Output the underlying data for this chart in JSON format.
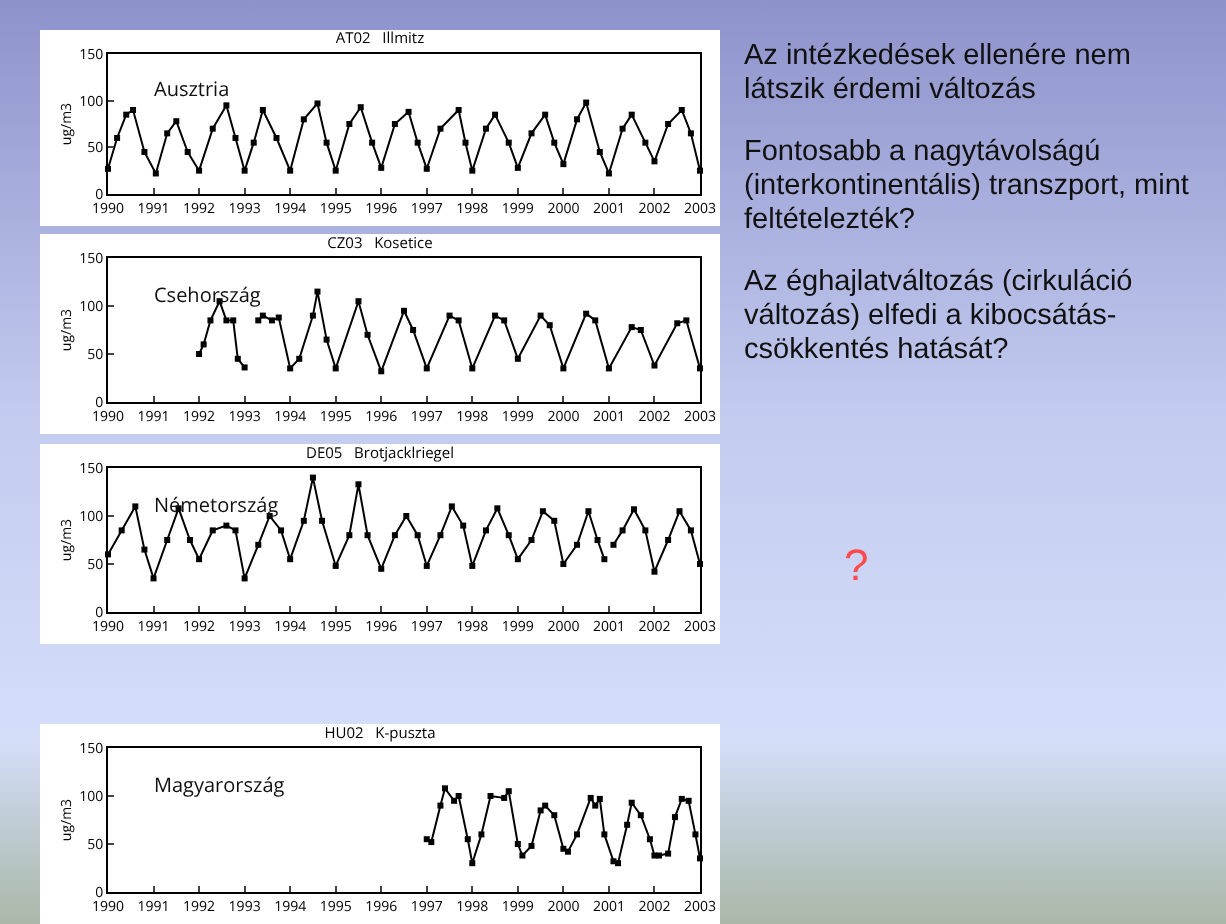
{
  "chart_data": [
    {
      "type": "line",
      "title": "AT02   Illmitz",
      "ylabel": "ug/m3",
      "annotations": [
        "Ausztria"
      ],
      "marker": "square",
      "grid": false,
      "xlim": [
        1990,
        2003
      ],
      "xticks": [
        1990,
        1991,
        1992,
        1993,
        1994,
        1995,
        1996,
        1997,
        1998,
        1999,
        2000,
        2001,
        2002,
        2003
      ],
      "ylim": [
        0,
        150
      ],
      "yticks": [
        0,
        50,
        100,
        150
      ],
      "x": [
        1990.0,
        1990.2,
        1990.4,
        1990.55,
        1990.8,
        1991.05,
        1991.3,
        1991.5,
        1991.75,
        1992.0,
        1992.3,
        1992.6,
        1992.8,
        1993.0,
        1993.2,
        1993.4,
        1993.7,
        1994.0,
        1994.3,
        1994.6,
        1994.8,
        1995.0,
        1995.3,
        1995.55,
        1995.8,
        1996.0,
        1996.3,
        1996.6,
        1996.8,
        1997.0,
        1997.3,
        1997.7,
        1997.85,
        1998.0,
        1998.3,
        1998.5,
        1998.8,
        1999.0,
        1999.3,
        1999.6,
        1999.8,
        2000.0,
        2000.3,
        2000.5,
        2000.8,
        2001.0,
        2001.3,
        2001.5,
        2001.8,
        2002.0,
        2002.3,
        2002.6,
        2002.8,
        2003.0
      ],
      "values": [
        27,
        60,
        85,
        90,
        45,
        22,
        65,
        78,
        45,
        25,
        70,
        95,
        60,
        25,
        55,
        90,
        60,
        25,
        80,
        97,
        55,
        25,
        75,
        93,
        55,
        28,
        75,
        88,
        55,
        27,
        70,
        90,
        55,
        25,
        70,
        85,
        55,
        28,
        65,
        85,
        55,
        32,
        80,
        98,
        45,
        22,
        70,
        85,
        55,
        35,
        75,
        90,
        65,
        25
      ]
    },
    {
      "type": "line",
      "title": "CZ03   Kosetice",
      "ylabel": "ug/m3",
      "annotations": [
        "Csehország"
      ],
      "marker": "square",
      "grid": false,
      "xlim": [
        1990,
        2003
      ],
      "xticks": [
        1990,
        1991,
        1992,
        1993,
        1994,
        1995,
        1996,
        1997,
        1998,
        1999,
        2000,
        2001,
        2002,
        2003
      ],
      "ylim": [
        0,
        150
      ],
      "yticks": [
        0,
        50,
        100,
        150
      ],
      "x": [
        1992.0,
        1992.1,
        1992.25,
        1992.45,
        1992.6,
        1992.75,
        1992.85,
        1993.0,
        1993.1,
        1993.3,
        1993.4,
        1993.6,
        1993.75,
        1994.0,
        1994.2,
        1994.5,
        1994.6,
        1994.8,
        1995.0,
        1995.5,
        1995.7,
        1996.0,
        1996.5,
        1996.7,
        1997.0,
        1997.5,
        1997.7,
        1998.0,
        1998.5,
        1998.7,
        1999.0,
        1999.5,
        1999.7,
        2000.0,
        2000.5,
        2000.7,
        2001.0,
        2001.5,
        2001.7,
        2002.0,
        2002.5,
        2002.7,
        2003.0
      ],
      "values": [
        50,
        60,
        85,
        105,
        85,
        85,
        45,
        36,
        null,
        85,
        90,
        85,
        88,
        35,
        45,
        90,
        115,
        65,
        35,
        105,
        70,
        32,
        95,
        75,
        35,
        90,
        85,
        35,
        90,
        85,
        45,
        90,
        80,
        35,
        92,
        85,
        35,
        78,
        75,
        38,
        82,
        85,
        35
      ]
    },
    {
      "type": "line",
      "title": "DE05   Brotjacklriegel",
      "ylabel": "ug/m3",
      "annotations": [
        "Németország"
      ],
      "marker": "square",
      "grid": false,
      "xlim": [
        1990,
        2003
      ],
      "xticks": [
        1990,
        1991,
        1992,
        1993,
        1994,
        1995,
        1996,
        1997,
        1998,
        1999,
        2000,
        2001,
        2002,
        2003
      ],
      "ylim": [
        0,
        150
      ],
      "yticks": [
        0,
        50,
        100,
        150
      ],
      "x": [
        1990.0,
        1990.3,
        1990.6,
        1990.8,
        1991.0,
        1991.3,
        1991.55,
        1991.8,
        1992.0,
        1992.3,
        1992.6,
        1992.8,
        1993.0,
        1993.3,
        1993.55,
        1993.8,
        1994.0,
        1994.3,
        1994.5,
        1994.7,
        1995.0,
        1995.3,
        1995.5,
        1995.7,
        1996.0,
        1996.3,
        1996.55,
        1996.8,
        1997.0,
        1997.3,
        1997.55,
        1997.8,
        1998.0,
        1998.3,
        1998.55,
        1998.8,
        1999.0,
        1999.3,
        1999.55,
        1999.8,
        2000.0,
        2000.3,
        2000.55,
        2000.75,
        2000.9,
        2001.0,
        2001.1,
        2001.3,
        2001.55,
        2001.8,
        2002.0,
        2002.3,
        2002.55,
        2002.8,
        2003.0
      ],
      "values": [
        60,
        85,
        110,
        65,
        35,
        75,
        108,
        75,
        55,
        85,
        90,
        85,
        35,
        70,
        100,
        85,
        55,
        95,
        140,
        95,
        48,
        80,
        133,
        80,
        45,
        80,
        100,
        80,
        48,
        80,
        110,
        90,
        48,
        85,
        108,
        80,
        55,
        75,
        105,
        95,
        50,
        70,
        105,
        75,
        55,
        null,
        70,
        85,
        107,
        85,
        42,
        75,
        105,
        85,
        50
      ]
    },
    {
      "type": "line",
      "title": "HU02   K-puszta",
      "ylabel": "ug/m3",
      "annotations": [
        "Magyarország"
      ],
      "marker": "square",
      "grid": false,
      "xlim": [
        1990,
        2003
      ],
      "xticks": [
        1990,
        1991,
        1992,
        1993,
        1994,
        1995,
        1996,
        1997,
        1998,
        1999,
        2000,
        2001,
        2002,
        2003
      ],
      "ylim": [
        0,
        150
      ],
      "yticks": [
        0,
        50,
        100,
        150
      ],
      "x": [
        1997.0,
        1997.1,
        1997.3,
        1997.4,
        1997.6,
        1997.7,
        1997.9,
        1998.0,
        1998.2,
        1998.4,
        1998.7,
        1998.8,
        1999.0,
        1999.1,
        1999.3,
        1999.5,
        1999.6,
        1999.8,
        2000.0,
        2000.1,
        2000.3,
        2000.6,
        2000.7,
        2000.8,
        2000.9,
        2001.1,
        2001.2,
        2001.4,
        2001.5,
        2001.7,
        2001.9,
        2002.0,
        2002.1,
        2002.3,
        2002.45,
        2002.6,
        2002.75,
        2002.9,
        2003.0
      ],
      "values": [
        55,
        52,
        90,
        108,
        95,
        100,
        55,
        30,
        60,
        100,
        98,
        105,
        50,
        38,
        48,
        85,
        90,
        80,
        45,
        42,
        60,
        98,
        90,
        97,
        60,
        32,
        30,
        70,
        93,
        80,
        55,
        38,
        38,
        40,
        78,
        97,
        95,
        60,
        35
      ]
    },
    {
      "type": "other",
      "annotations": [
        "Az intézkedések ellenére nem látszik érdemi változás",
        "Fontosabb a nagytávolságú (interkontinentális) transzport, mint feltételezték?",
        "Az éghajlatváltozás (cirkuláció változás) elfedi a kibocsátás-csökkentés hatását?",
        "?"
      ]
    }
  ]
}
